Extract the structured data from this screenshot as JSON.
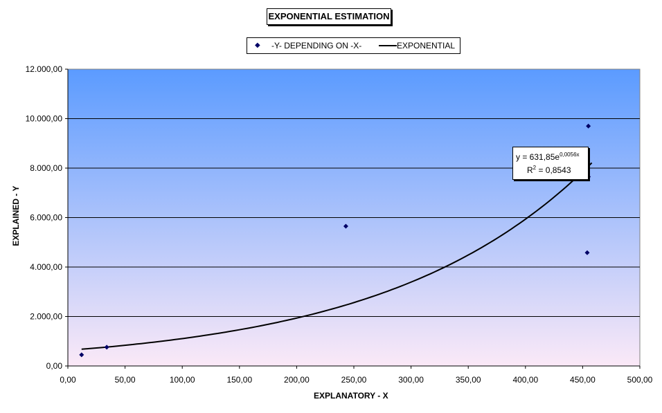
{
  "chart_data": {
    "type": "scatter",
    "title": "EXPONENTIAL ESTIMATION",
    "xlabel": "EXPLANATORY - X",
    "ylabel": "EXPLAINED - Y",
    "xlim": [
      0,
      500
    ],
    "ylim": [
      0,
      12000
    ],
    "x_ticks": [
      "0,00",
      "50,00",
      "100,00",
      "150,00",
      "200,00",
      "250,00",
      "300,00",
      "350,00",
      "400,00",
      "450,00",
      "500,00"
    ],
    "y_ticks": [
      "0,00",
      "2.000,00",
      "4.000,00",
      "6.000,00",
      "8.000,00",
      "10.000,00",
      "12.000,00"
    ],
    "grid": "horizontal",
    "legend_position": "top",
    "series": [
      {
        "name": "-Y-  DEPENDING ON  -X-",
        "kind": "points",
        "color": "#000066",
        "points": [
          {
            "x": 12,
            "y": 450
          },
          {
            "x": 34,
            "y": 760
          },
          {
            "x": 243,
            "y": 5650
          },
          {
            "x": 455,
            "y": 9700
          },
          {
            "x": 455,
            "y": 7650
          },
          {
            "x": 454,
            "y": 4580
          }
        ]
      },
      {
        "name": "EXPONENTIAL",
        "kind": "trendline",
        "color": "#000000",
        "a": 631.85,
        "b": 0.0056,
        "x_range": [
          12,
          458
        ]
      }
    ],
    "annotation": {
      "equation_prefix": "y = 631,85e",
      "equation_exponent": "0,0056x",
      "r2_prefix": "R",
      "r2_sup": "2",
      "r2_value": " = 0,8543"
    },
    "background_gradient": {
      "top": "#5b9bff",
      "bottom": "#fbe9f7"
    }
  }
}
